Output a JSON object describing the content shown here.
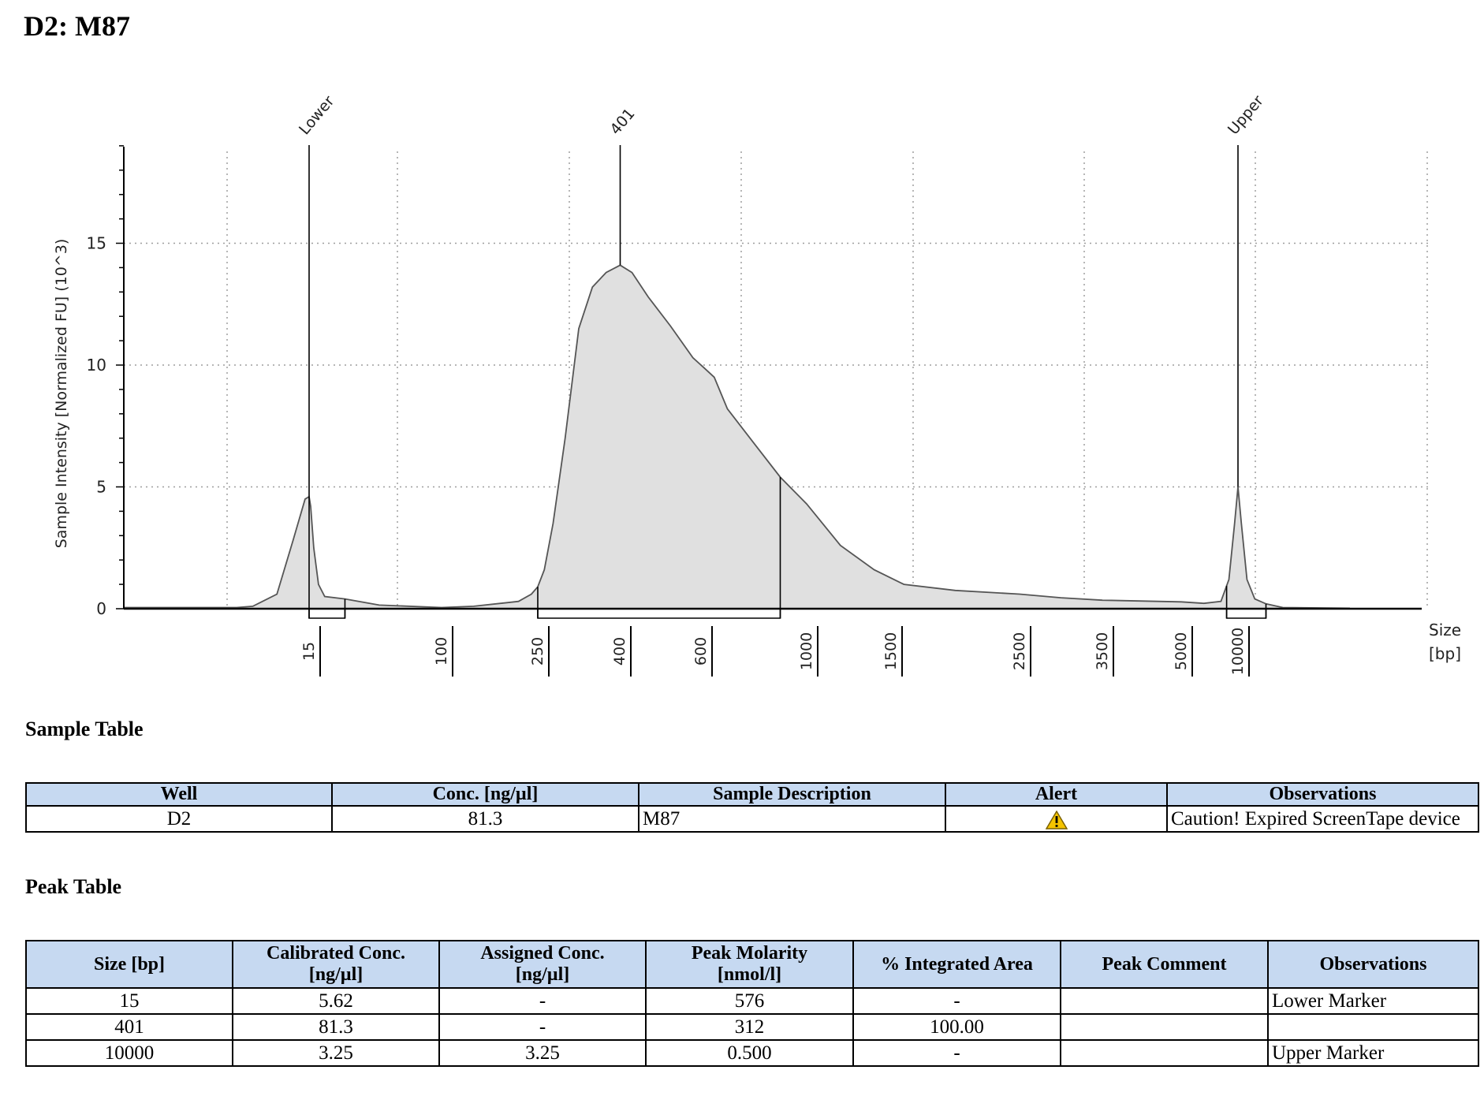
{
  "page": {
    "title": "D2: M87"
  },
  "colors": {
    "fill": "#e0e0e0",
    "stroke": "#555555",
    "grid": "#9e9e9e",
    "header_bg": "#c6d9f1",
    "alert": "#f5c400"
  },
  "chart_data": {
    "type": "area",
    "title": "",
    "ylabel": "Sample Intensity [Normalized FU] (10^3)",
    "xlabel": "Size\n[bp]",
    "xlabel_lines": [
      "Size",
      "[bp]"
    ],
    "ylim": [
      0,
      19
    ],
    "y_ticks": [
      "0",
      "5",
      "10",
      "15"
    ],
    "y_tick_values": [
      0,
      5,
      10,
      15
    ],
    "x_ticks": [
      "15",
      "100",
      "250",
      "400",
      "600",
      "1000",
      "1500",
      "2500",
      "3500",
      "5000",
      "10000"
    ],
    "grid": true,
    "peaks": [
      {
        "label": "Lower",
        "size": 15,
        "height": 4.6
      },
      {
        "label": "401",
        "size": 401,
        "height": 14.1
      },
      {
        "label": "Upper",
        "size": 10000,
        "height": 5.0
      }
    ],
    "region_brackets": [
      {
        "from": 15,
        "to": 38
      },
      {
        "from": 250,
        "to": 900
      },
      {
        "from": 9000,
        "to": 12500
      }
    ],
    "series": [
      {
        "points": [
          [
            0.0,
            0.05
          ],
          [
            6.0,
            0.05
          ],
          [
            8.0,
            0.1
          ],
          [
            11.0,
            0.6
          ],
          [
            13.0,
            2.8
          ],
          [
            14.5,
            4.5
          ],
          [
            15.0,
            4.6
          ],
          [
            16.0,
            4.2
          ],
          [
            18.0,
            2.5
          ],
          [
            21.0,
            1.0
          ],
          [
            25.0,
            0.5
          ],
          [
            38.0,
            0.4
          ],
          [
            60.0,
            0.15
          ],
          [
            100.0,
            0.05
          ],
          [
            150.0,
            0.1
          ],
          [
            220.0,
            0.3
          ],
          [
            240.0,
            0.6
          ],
          [
            250.0,
            0.9
          ],
          [
            262.0,
            1.6
          ],
          [
            278.0,
            3.5
          ],
          [
            300.0,
            7.0
          ],
          [
            325.0,
            11.5
          ],
          [
            350.0,
            13.2
          ],
          [
            375.0,
            13.8
          ],
          [
            401.0,
            14.1
          ],
          [
            430.0,
            13.8
          ],
          [
            470.0,
            12.8
          ],
          [
            525.0,
            11.6
          ],
          [
            580.0,
            10.3
          ],
          [
            610.0,
            9.9
          ],
          [
            650.0,
            9.5
          ],
          [
            700.0,
            8.2
          ],
          [
            800.0,
            6.8
          ],
          [
            900.0,
            5.4
          ],
          [
            1000.0,
            4.3
          ],
          [
            1200.0,
            2.6
          ],
          [
            1400.0,
            1.6
          ],
          [
            1600.0,
            1.0
          ],
          [
            2000.0,
            0.75
          ],
          [
            2500.0,
            0.6
          ],
          [
            3000.0,
            0.45
          ],
          [
            3500.0,
            0.35
          ],
          [
            5000.0,
            0.28
          ],
          [
            7000.0,
            0.22
          ],
          [
            8500.0,
            0.3
          ],
          [
            9200.0,
            1.2
          ],
          [
            9700.0,
            3.5
          ],
          [
            10000.0,
            5.0
          ],
          [
            10300.0,
            3.5
          ],
          [
            10800.0,
            1.2
          ],
          [
            11500.0,
            0.4
          ],
          [
            12500.0,
            0.2
          ],
          [
            14000.0,
            0.05
          ],
          [
            20000.0,
            0.02
          ]
        ]
      }
    ]
  },
  "sample_table": {
    "title": "Sample Table",
    "headers": [
      "Well",
      "Conc. [ng/µl]",
      "Sample Description",
      "Alert",
      "Observations"
    ],
    "row": {
      "well": "D2",
      "conc": "81.3",
      "description": "M87",
      "alert_icon": "warning-icon",
      "observations": "Caution! Expired ScreenTape device"
    }
  },
  "peak_table": {
    "title": "Peak Table",
    "headers": [
      [
        "Size [bp]"
      ],
      [
        "Calibrated Conc.",
        "[ng/µl]"
      ],
      [
        "Assigned Conc.",
        "[ng/µl]"
      ],
      [
        "Peak Molarity",
        "[nmol/l]"
      ],
      [
        "% Integrated Area"
      ],
      [
        "Peak Comment"
      ],
      [
        "Observations"
      ]
    ],
    "rows": [
      [
        "15",
        "5.62",
        "-",
        "576",
        "-",
        "",
        "Lower Marker"
      ],
      [
        "401",
        "81.3",
        "-",
        "312",
        "100.00",
        "",
        ""
      ],
      [
        "10000",
        "3.25",
        "3.25",
        "0.500",
        "-",
        "",
        "Upper Marker"
      ]
    ]
  }
}
